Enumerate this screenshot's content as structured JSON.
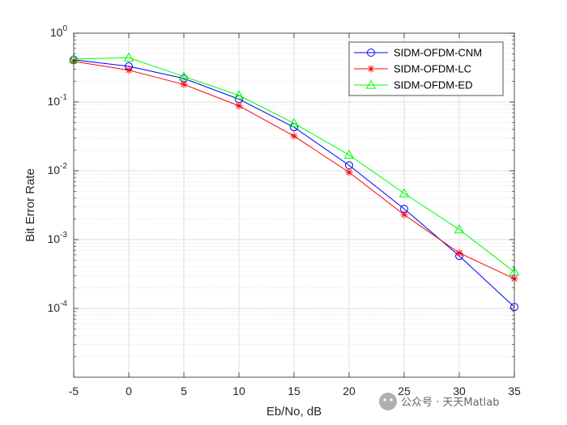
{
  "chart_data": {
    "type": "line",
    "title": "",
    "xlabel": "Eb/No, dB",
    "ylabel": "Bit Error Rate",
    "xlim": [
      -5,
      35
    ],
    "ylim": [
      1e-05,
      1
    ],
    "yscale": "log",
    "grid": true,
    "minor_grid": true,
    "legend_position": "top-right",
    "x": [
      -5,
      0,
      5,
      10,
      15,
      20,
      25,
      30,
      35
    ],
    "x_tick_labels": [
      "-5",
      "0",
      "5",
      "10",
      "15",
      "20",
      "25",
      "30",
      "35"
    ],
    "y_tick_labels": [
      {
        "base": "10",
        "exp": "0"
      },
      {
        "base": "10",
        "exp": "-1"
      },
      {
        "base": "10",
        "exp": "-2"
      },
      {
        "base": "10",
        "exp": "-3"
      },
      {
        "base": "10",
        "exp": "-4"
      }
    ],
    "series": [
      {
        "name": "SIDM-OFDM-CNM",
        "color": "#0000ff",
        "marker": "circle",
        "values": [
          0.41,
          0.33,
          0.22,
          0.11,
          0.043,
          0.012,
          0.0028,
          0.00058,
          0.000105
        ]
      },
      {
        "name": "SIDM-OFDM-LC",
        "color": "#ff0000",
        "marker": "asterisk",
        "values": [
          0.39,
          0.29,
          0.18,
          0.088,
          0.032,
          0.0095,
          0.0023,
          0.00064,
          0.00027
        ]
      },
      {
        "name": "SIDM-OFDM-ED",
        "color": "#00ff00",
        "marker": "triangle",
        "values": [
          0.42,
          0.44,
          0.235,
          0.125,
          0.049,
          0.017,
          0.0047,
          0.0014,
          0.00034
        ]
      }
    ]
  },
  "watermark": {
    "text": "公众号 · 天天Matlab"
  }
}
